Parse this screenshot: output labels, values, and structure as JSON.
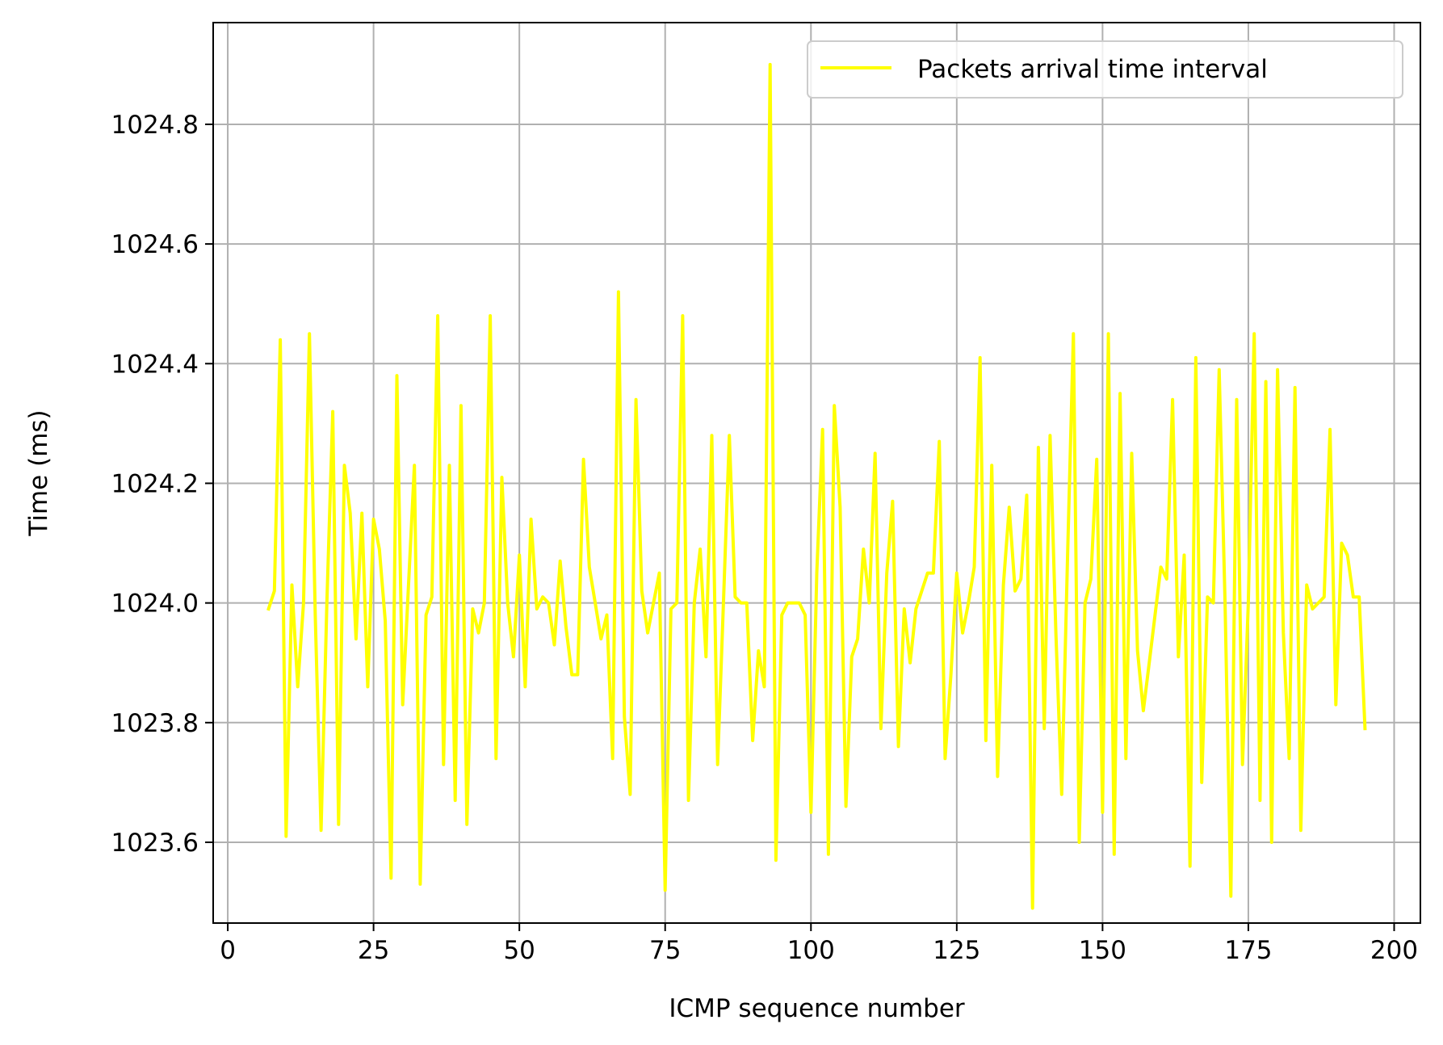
{
  "chart_data": {
    "type": "line",
    "title": "",
    "xlabel": "ICMP sequence number",
    "ylabel": "Time (ms)",
    "xlim": [
      -2.5,
      204.5
    ],
    "ylim": [
      1023.465,
      1024.97
    ],
    "xticks": [
      0,
      25,
      50,
      75,
      100,
      125,
      150,
      175,
      200
    ],
    "xtick_labels": [
      "0",
      "25",
      "50",
      "75",
      "100",
      "125",
      "150",
      "175",
      "200"
    ],
    "yticks": [
      1023.6,
      1023.8,
      1024.0,
      1024.2,
      1024.4,
      1024.6,
      1024.8
    ],
    "ytick_labels": [
      "1023.6",
      "1023.8",
      "1024.0",
      "1024.2",
      "1024.4",
      "1024.6",
      "1024.8"
    ],
    "grid": true,
    "legend": {
      "position": "top-right"
    },
    "series": [
      {
        "name": "Packets arrival time interval",
        "color": "#ffff00",
        "x_start": 7,
        "y": [
          1023.99,
          1024.02,
          1024.44,
          1023.61,
          1024.03,
          1023.86,
          1024.0,
          1024.45,
          1023.98,
          1023.62,
          1024.0,
          1024.32,
          1023.63,
          1024.23,
          1024.15,
          1023.94,
          1024.15,
          1023.86,
          1024.14,
          1024.09,
          1023.97,
          1023.54,
          1024.38,
          1023.83,
          1024.03,
          1024.23,
          1023.53,
          1023.98,
          1024.01,
          1024.48,
          1023.73,
          1024.23,
          1023.67,
          1024.33,
          1023.63,
          1023.99,
          1023.95,
          1024.0,
          1024.48,
          1023.74,
          1024.21,
          1024.0,
          1023.91,
          1024.08,
          1023.86,
          1024.14,
          1023.99,
          1024.01,
          1024.0,
          1023.93,
          1024.07,
          1023.96,
          1023.88,
          1023.88,
          1024.24,
          1024.06,
          1024.0,
          1023.94,
          1023.98,
          1023.74,
          1024.52,
          1023.81,
          1023.68,
          1024.34,
          1024.02,
          1023.95,
          1024.0,
          1024.05,
          1023.52,
          1023.99,
          1024.0,
          1024.48,
          1023.67,
          1024.0,
          1024.09,
          1023.91,
          1024.28,
          1023.73,
          1024.0,
          1024.28,
          1024.01,
          1024.0,
          1024.0,
          1023.77,
          1023.92,
          1023.86,
          1024.9,
          1023.57,
          1023.98,
          1024.0,
          1024.0,
          1024.0,
          1023.98,
          1023.65,
          1024.05,
          1024.29,
          1023.58,
          1024.33,
          1024.16,
          1023.66,
          1023.91,
          1023.94,
          1024.09,
          1024.0,
          1024.25,
          1023.79,
          1024.05,
          1024.17,
          1023.76,
          1023.99,
          1023.9,
          1023.99,
          1024.02,
          1024.05,
          1024.05,
          1024.27,
          1023.74,
          1023.88,
          1024.05,
          1023.95,
          1024.0,
          1024.06,
          1024.41,
          1023.77,
          1024.23,
          1023.71,
          1024.03,
          1024.16,
          1024.02,
          1024.04,
          1024.18,
          1023.49,
          1024.26,
          1023.79,
          1024.28,
          1023.95,
          1023.68,
          1024.08,
          1024.45,
          1023.6,
          1024.0,
          1024.04,
          1024.24,
          1023.65,
          1024.45,
          1023.58,
          1024.35,
          1023.74,
          1024.25,
          1023.92,
          1023.82,
          1023.9,
          1023.98,
          1024.06,
          1024.04,
          1024.34,
          1023.91,
          1024.08,
          1023.56,
          1024.41,
          1023.7,
          1024.01,
          1024.0,
          1024.39,
          1024.0,
          1023.51,
          1024.34,
          1023.73,
          1024.0,
          1024.45,
          1023.67,
          1024.37,
          1023.6,
          1024.39,
          1023.95,
          1023.74,
          1024.36,
          1023.62,
          1024.03,
          1023.99,
          1024.0,
          1024.01,
          1024.29,
          1023.83,
          1024.1,
          1024.08,
          1024.01,
          1024.01,
          1023.79
        ]
      }
    ]
  }
}
